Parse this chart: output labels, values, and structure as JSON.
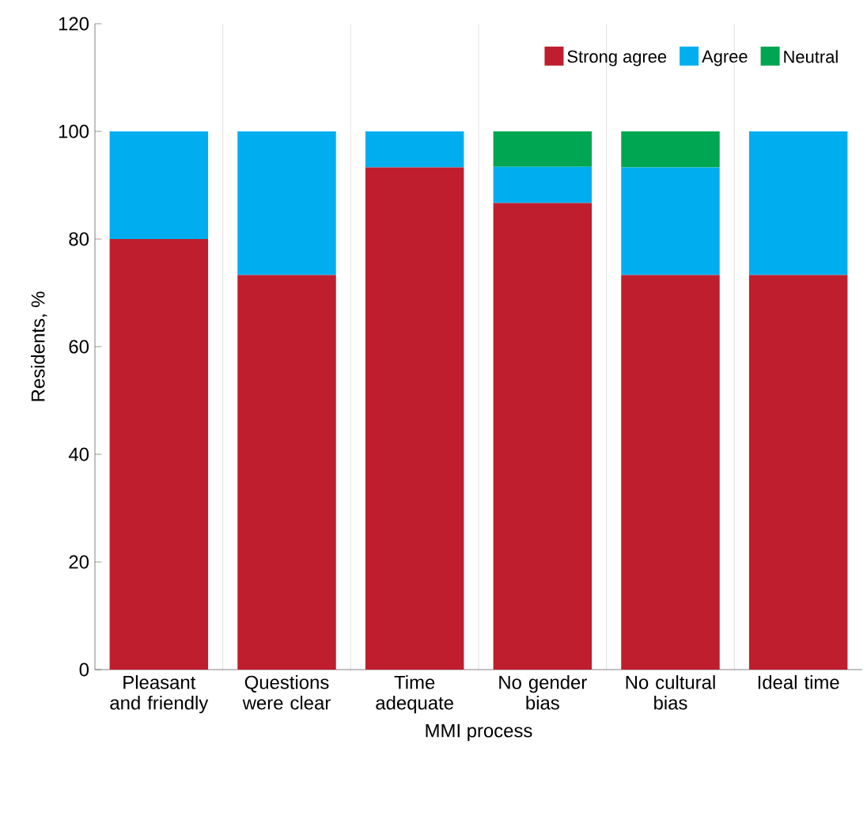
{
  "chart_data": {
    "type": "bar",
    "stacked": true,
    "xlabel": "MMI process",
    "ylabel": "Residents, %",
    "categories": [
      "Pleasant and friendly",
      "Questions were clear",
      "Time adequate",
      "No gender bias",
      "No cultural bias",
      "Ideal time"
    ],
    "series": [
      {
        "name": "Strong agree",
        "color": "#be1e2d",
        "values": [
          80,
          73.3,
          93.3,
          86.7,
          73.3,
          73.3
        ]
      },
      {
        "name": "Agree",
        "color": "#00aeef",
        "values": [
          20,
          26.7,
          6.7,
          6.7,
          20,
          26.7
        ]
      },
      {
        "name": "Neutral",
        "color": "#00a651",
        "values": [
          0,
          0,
          0,
          6.6,
          6.7,
          0
        ]
      }
    ],
    "ylim": [
      0,
      120
    ],
    "yticks": [
      0,
      20,
      40,
      60,
      80,
      100,
      120
    ],
    "grid": "x",
    "legend": "top right"
  }
}
